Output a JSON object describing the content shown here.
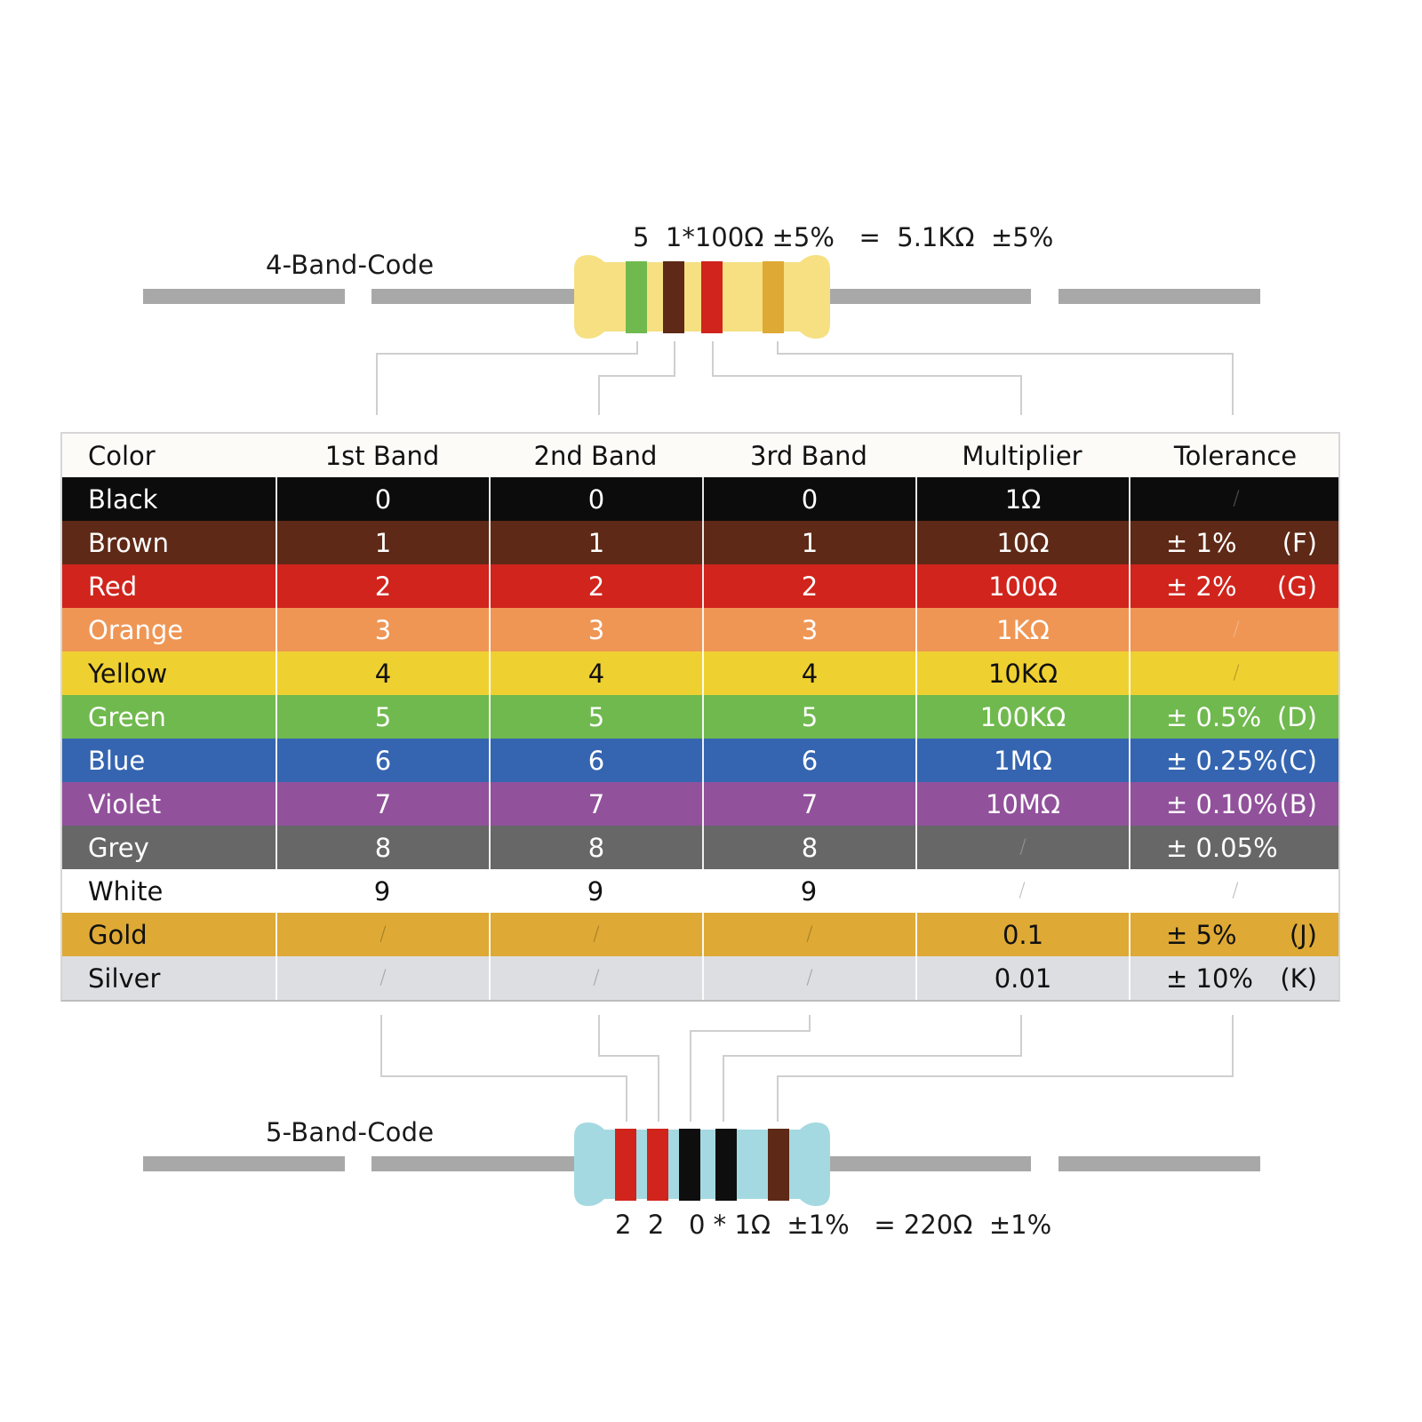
{
  "four_band": {
    "label": "4-Band-Code",
    "formula": "5  1*100Ω ±5%   =  5.1KΩ  ±5%",
    "body_color": "#f6e082",
    "bands": [
      {
        "color": "Green",
        "hex": "#70b94e",
        "meaning": "1st Band",
        "value": "5"
      },
      {
        "color": "Brown",
        "hex": "#5e2916",
        "meaning": "2nd Band",
        "value": "1"
      },
      {
        "color": "Red",
        "hex": "#d0241c",
        "meaning": "Multiplier",
        "value": "100Ω"
      },
      {
        "color": "Gold",
        "hex": "#dea935",
        "meaning": "Tolerance",
        "value": "±5%"
      }
    ]
  },
  "five_band": {
    "label": "5-Band-Code",
    "formula": "2  2   0 * 1Ω  ±1%   = 220Ω  ±1%",
    "body_color": "#a4d9e1",
    "bands": [
      {
        "color": "Red",
        "hex": "#d0241c",
        "meaning": "1st Band",
        "value": "2"
      },
      {
        "color": "Red",
        "hex": "#d0241c",
        "meaning": "2nd Band",
        "value": "2"
      },
      {
        "color": "Black",
        "hex": "#0e0e0e",
        "meaning": "3rd Band",
        "value": "0"
      },
      {
        "color": "Black",
        "hex": "#0e0e0e",
        "meaning": "Multiplier",
        "value": "1Ω"
      },
      {
        "color": "Brown",
        "hex": "#5e2916",
        "meaning": "Tolerance",
        "value": "±1%"
      }
    ]
  },
  "table": {
    "headers": [
      "Color",
      "1st Band",
      "2nd Band",
      "3rd Band",
      "Multiplier",
      "Tolerance"
    ],
    "rows": [
      {
        "name": "Black",
        "bg": "#0c0c0c",
        "fg": "#ffffff",
        "b1": "0",
        "b2": "0",
        "b3": "0",
        "mult": "1Ω",
        "tol": "",
        "code": ""
      },
      {
        "name": "Brown",
        "bg": "#5e2916",
        "fg": "#ffffff",
        "b1": "1",
        "b2": "1",
        "b3": "1",
        "mult": "10Ω",
        "tol": "± 1%",
        "code": "(F)"
      },
      {
        "name": "Red",
        "bg": "#d0241c",
        "fg": "#ffffff",
        "b1": "2",
        "b2": "2",
        "b3": "2",
        "mult": "100Ω",
        "tol": "± 2%",
        "code": "(G)"
      },
      {
        "name": "Orange",
        "bg": "#ef9655",
        "fg": "#ffffff",
        "b1": "3",
        "b2": "3",
        "b3": "3",
        "mult": "1KΩ",
        "tol": "",
        "code": ""
      },
      {
        "name": "Yellow",
        "bg": "#efd031",
        "fg": "#111111",
        "b1": "4",
        "b2": "4",
        "b3": "4",
        "mult": "10KΩ",
        "tol": "",
        "code": ""
      },
      {
        "name": "Green",
        "bg": "#70b94e",
        "fg": "#ffffff",
        "b1": "5",
        "b2": "5",
        "b3": "5",
        "mult": "100KΩ",
        "tol": "± 0.5%",
        "code": "(D)"
      },
      {
        "name": "Blue",
        "bg": "#3565b0",
        "fg": "#ffffff",
        "b1": "6",
        "b2": "6",
        "b3": "6",
        "mult": "1MΩ",
        "tol": "± 0.25%",
        "code": "(C)"
      },
      {
        "name": "Violet",
        "bg": "#91519b",
        "fg": "#ffffff",
        "b1": "7",
        "b2": "7",
        "b3": "7",
        "mult": "10MΩ",
        "tol": "± 0.10%",
        "code": "(B)"
      },
      {
        "name": "Grey",
        "bg": "#676767",
        "fg": "#ffffff",
        "b1": "8",
        "b2": "8",
        "b3": "8",
        "mult": "",
        "tol": "± 0.05%",
        "code": ""
      },
      {
        "name": "White",
        "bg": "#ffffff",
        "fg": "#111111",
        "b1": "9",
        "b2": "9",
        "b3": "9",
        "mult": "",
        "tol": "",
        "code": ""
      },
      {
        "name": "Gold",
        "bg": "#dea935",
        "fg": "#111111",
        "b1": "",
        "b2": "",
        "b3": "",
        "mult": "0.1",
        "tol": "± 5%",
        "code": "(J)"
      },
      {
        "name": "Silver",
        "bg": "#dcdee2",
        "fg": "#111111",
        "b1": "",
        "b2": "",
        "b3": "",
        "mult": "0.01",
        "tol": "± 10%",
        "code": "(K)"
      }
    ],
    "empty_marker": "/"
  }
}
